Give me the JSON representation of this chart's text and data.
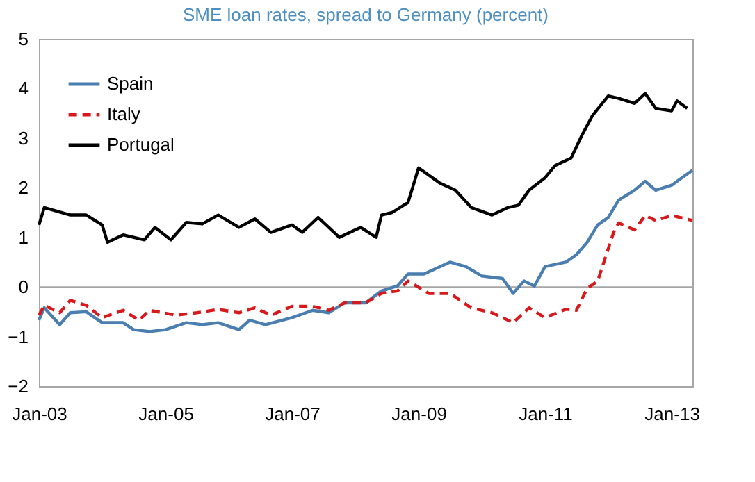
{
  "chart_data": {
    "type": "line",
    "title": "SME loan rates, spread to Germany (percent)",
    "xlim": [
      "2003-01",
      "2013-05"
    ],
    "xticks": [
      {
        "value": "2003-01",
        "label": "Jan-03"
      },
      {
        "value": "2005-01",
        "label": "Jan-05"
      },
      {
        "value": "2007-01",
        "label": "Jan-07"
      },
      {
        "value": "2009-01",
        "label": "Jan-09"
      },
      {
        "value": "2011-01",
        "label": "Jan-11"
      },
      {
        "value": "2013-01",
        "label": "Jan-13"
      }
    ],
    "ylim": [
      -2,
      5
    ],
    "yticks": [
      -2,
      -1,
      0,
      1,
      2,
      3,
      4,
      5
    ],
    "grid": false,
    "legend": "top left",
    "ref_lines": [
      {
        "axis": "y",
        "value": 0,
        "color": "#a6a6a6"
      }
    ],
    "series": [
      {
        "name": "Spain",
        "color": "#4a7eb0",
        "line_style": "solid",
        "x": [
          "2003-01",
          "2003-02",
          "2003-05",
          "2003-07",
          "2003-10",
          "2004-01",
          "2004-05",
          "2004-07",
          "2004-10",
          "2005-01",
          "2005-05",
          "2005-08",
          "2005-11",
          "2006-03",
          "2006-05",
          "2006-08",
          "2007-01",
          "2007-05",
          "2007-08",
          "2007-11",
          "2008-03",
          "2008-06",
          "2008-09",
          "2008-11",
          "2009-02",
          "2009-07",
          "2009-10",
          "2010-01",
          "2010-05",
          "2010-07",
          "2010-09",
          "2010-11",
          "2011-01",
          "2011-05",
          "2011-07",
          "2011-09",
          "2011-11",
          "2012-01",
          "2012-03",
          "2012-06",
          "2012-08",
          "2012-10",
          "2013-01",
          "2013-03",
          "2013-05"
        ],
        "values": [
          -0.67,
          -0.42,
          -0.76,
          -0.52,
          -0.5,
          -0.72,
          -0.72,
          -0.86,
          -0.9,
          -0.86,
          -0.72,
          -0.76,
          -0.72,
          -0.86,
          -0.67,
          -0.76,
          -0.62,
          -0.47,
          -0.52,
          -0.32,
          -0.32,
          -0.08,
          0.02,
          0.26,
          0.26,
          0.5,
          0.41,
          0.22,
          0.17,
          -0.13,
          0.12,
          0.02,
          0.41,
          0.5,
          0.65,
          0.9,
          1.25,
          1.4,
          1.75,
          1.95,
          2.13,
          1.95,
          2.05,
          2.2,
          2.35
        ]
      },
      {
        "name": "Italy",
        "color": "#d7191c",
        "line_style": "dashed",
        "x": [
          "2003-01",
          "2003-02",
          "2003-05",
          "2003-07",
          "2003-10",
          "2004-01",
          "2004-05",
          "2004-08",
          "2004-10",
          "2005-03",
          "2005-07",
          "2005-11",
          "2006-03",
          "2006-06",
          "2006-09",
          "2007-01",
          "2007-05",
          "2007-08",
          "2007-11",
          "2008-03",
          "2008-06",
          "2008-09",
          "2008-11",
          "2009-03",
          "2009-07",
          "2009-11",
          "2010-03",
          "2010-07",
          "2010-10",
          "2011-01",
          "2011-05",
          "2011-07",
          "2011-09",
          "2011-11",
          "2012-02",
          "2012-03",
          "2012-06",
          "2012-08",
          "2012-10",
          "2013-01",
          "2013-05"
        ],
        "values": [
          -0.57,
          -0.37,
          -0.52,
          -0.27,
          -0.37,
          -0.62,
          -0.47,
          -0.67,
          -0.47,
          -0.57,
          -0.52,
          -0.45,
          -0.52,
          -0.42,
          -0.57,
          -0.39,
          -0.39,
          -0.47,
          -0.32,
          -0.32,
          -0.13,
          -0.08,
          0.12,
          -0.13,
          -0.13,
          -0.42,
          -0.52,
          -0.72,
          -0.42,
          -0.62,
          -0.45,
          -0.47,
          -0.03,
          0.12,
          1.1,
          1.29,
          1.15,
          1.44,
          1.34,
          1.44,
          1.34
        ]
      },
      {
        "name": "Portugal",
        "color": "#000000",
        "line_style": "solid",
        "x": [
          "2003-01",
          "2003-02",
          "2003-07",
          "2003-10",
          "2004-01",
          "2004-02",
          "2004-05",
          "2004-09",
          "2004-11",
          "2005-02",
          "2005-05",
          "2005-08",
          "2005-11",
          "2006-03",
          "2006-06",
          "2006-09",
          "2007-01",
          "2007-03",
          "2007-06",
          "2007-08",
          "2007-10",
          "2008-02",
          "2008-05",
          "2008-06",
          "2008-08",
          "2008-11",
          "2009-01",
          "2009-05",
          "2009-08",
          "2009-11",
          "2010-03",
          "2010-06",
          "2010-08",
          "2010-10",
          "2011-01",
          "2011-03",
          "2011-06",
          "2011-08",
          "2011-10",
          "2012-01",
          "2012-03",
          "2012-06",
          "2012-08",
          "2012-10",
          "2013-01",
          "2013-02",
          "2013-04"
        ],
        "values": [
          1.25,
          1.6,
          1.45,
          1.45,
          1.25,
          0.9,
          1.05,
          0.95,
          1.2,
          0.95,
          1.3,
          1.27,
          1.45,
          1.2,
          1.37,
          1.1,
          1.25,
          1.1,
          1.4,
          1.2,
          1.0,
          1.2,
          1.0,
          1.45,
          1.5,
          1.7,
          2.4,
          2.1,
          1.95,
          1.6,
          1.45,
          1.6,
          1.65,
          1.95,
          2.2,
          2.45,
          2.6,
          3.05,
          3.45,
          3.85,
          3.8,
          3.7,
          3.9,
          3.6,
          3.55,
          3.75,
          3.6
        ]
      }
    ]
  }
}
